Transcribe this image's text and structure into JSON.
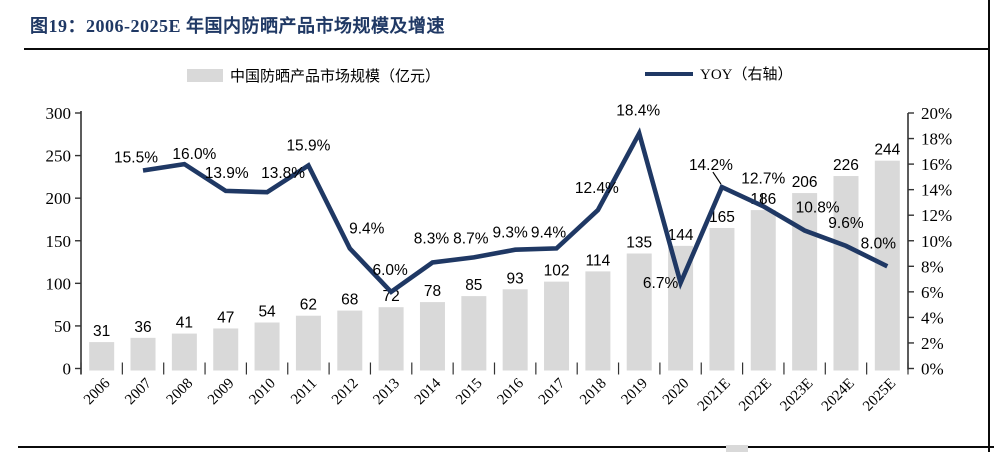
{
  "figure": {
    "title": "图19：2006-2025E 年国内防晒产品市场规模及增速",
    "accent_color": "#1f3864",
    "bar_color": "#d9d9d9",
    "line_color": "#1f3864"
  },
  "legend": {
    "market_size_label": "中国防晒产品市场规模（亿元）",
    "yoy_label": "YOY（右轴）"
  },
  "chart_data": {
    "type": "bar+line",
    "title": "2006-2025E 年国内防晒产品市场规模及增速",
    "categories": [
      "2006",
      "2007",
      "2008",
      "2009",
      "2010",
      "2011",
      "2012",
      "2013",
      "2014",
      "2015",
      "2016",
      "2017",
      "2018",
      "2019",
      "2020",
      "2021E",
      "2022E",
      "2023E",
      "2024E",
      "2025E"
    ],
    "series": [
      {
        "name": "中国防晒产品市场规模（亿元）",
        "type": "bar",
        "axis": "left",
        "color": "#d9d9d9",
        "values": [
          31,
          36,
          41,
          47,
          54,
          62,
          68,
          72,
          78,
          85,
          93,
          102,
          114,
          135,
          144,
          165,
          186,
          206,
          226,
          244
        ]
      },
      {
        "name": "YOY（右轴）",
        "type": "line",
        "axis": "right",
        "color": "#1f3864",
        "values": [
          null,
          15.5,
          16.0,
          13.9,
          13.8,
          15.9,
          9.4,
          6.0,
          8.3,
          8.7,
          9.3,
          9.4,
          12.4,
          18.4,
          6.7,
          14.2,
          12.7,
          10.8,
          9.6,
          8.0
        ],
        "labels": [
          "",
          "15.5%",
          "16.0%",
          "13.9%",
          "13.8%",
          "15.9%",
          "9.4%",
          "6.0%",
          "8.3%",
          "8.7%",
          "9.3%",
          "9.4%",
          "12.4%",
          "18.4%",
          "6.7%",
          "14.2%",
          "12.7%",
          "10.8%",
          "9.6%",
          "8.0%"
        ]
      }
    ],
    "left_axis": {
      "min": 0,
      "max": 300,
      "step": 50,
      "ticks": [
        "0",
        "50",
        "100",
        "150",
        "200",
        "250",
        "300"
      ]
    },
    "right_axis": {
      "min": 0,
      "max": 20,
      "step": 2,
      "ticks": [
        "0%",
        "2%",
        "4%",
        "6%",
        "8%",
        "10%",
        "12%",
        "14%",
        "16%",
        "18%",
        "20%"
      ]
    },
    "grid": false,
    "legend_position": "top"
  }
}
